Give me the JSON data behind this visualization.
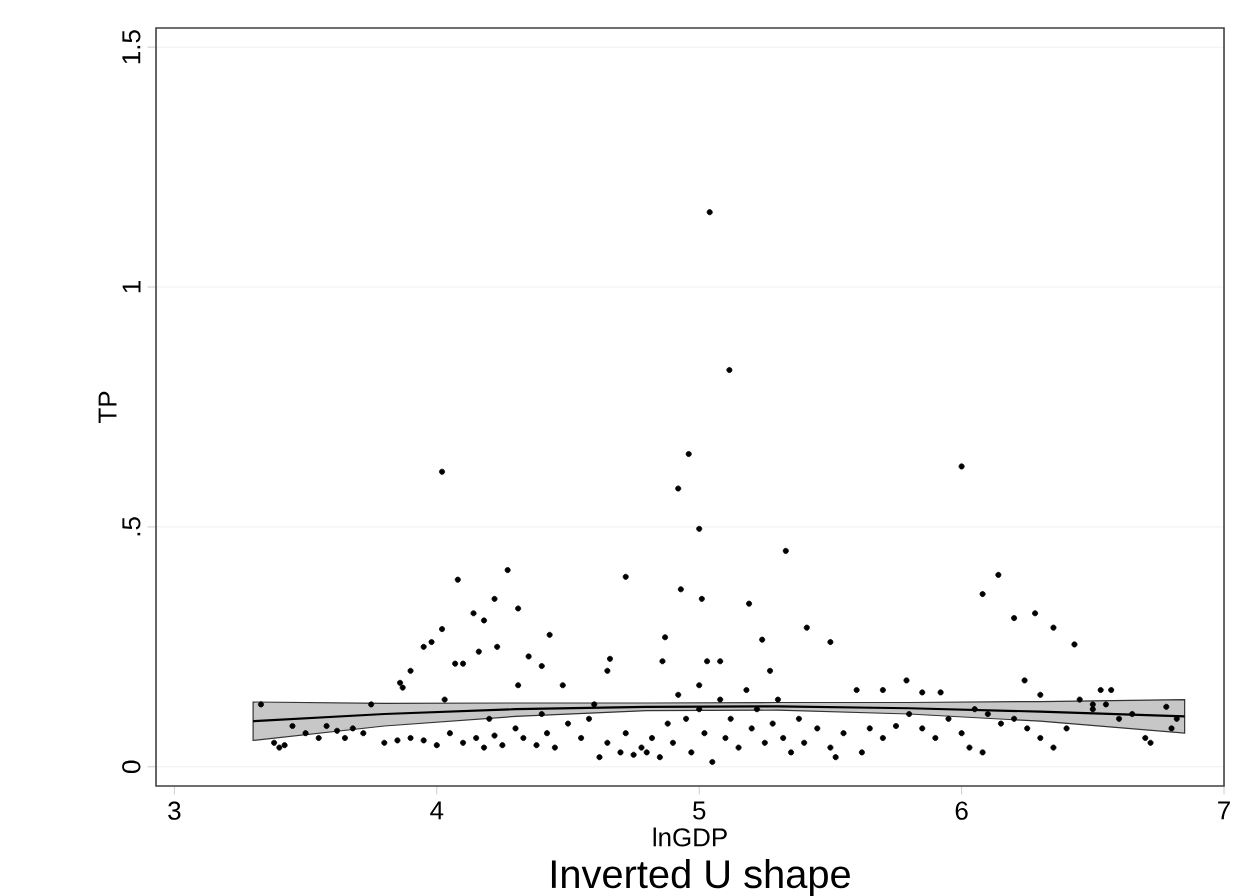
{
  "chart_data": {
    "type": "scatter",
    "xlabel": "lnGDP",
    "ylabel": "TP",
    "annotations": [
      "Inverted U shape"
    ],
    "xlim": [
      2.93,
      7.0
    ],
    "ylim": [
      -0.04,
      1.54
    ],
    "xticks": [
      3,
      4,
      5,
      6,
      7
    ],
    "yticks": [
      0,
      {
        "value": 0.5,
        "label": ".5"
      },
      1,
      1.5
    ],
    "grid": "y",
    "series": [
      {
        "color": "#000000",
        "marker": "circle",
        "x": [
          5.04,
          5.115,
          4.96,
          4.92,
          5.0,
          4.02,
          6.0,
          5.33,
          4.72,
          4.27,
          4.08,
          6.14,
          6.08,
          4.93,
          5.01,
          5.19,
          4.22,
          4.31,
          4.14,
          4.18,
          6.2,
          6.28,
          6.35,
          6.43,
          5.41,
          5.5,
          5.24,
          4.87,
          4.43,
          4.02,
          3.98,
          3.95,
          4.23,
          4.35,
          4.07,
          4.1,
          4.4,
          4.16,
          3.9,
          3.86,
          3.87,
          4.66,
          4.65,
          4.86,
          5.03,
          5.08,
          5.27,
          4.31,
          4.48,
          4.03,
          5.79,
          6.24,
          5.6,
          5.7,
          5.85,
          5.92,
          6.53,
          6.57,
          3.75,
          3.33,
          3.38,
          3.4,
          3.42,
          3.45,
          3.5,
          3.55,
          3.58,
          3.62,
          3.65,
          3.68,
          3.72,
          3.8,
          3.85,
          3.9,
          3.95,
          4.0,
          4.05,
          4.1,
          4.15,
          4.18,
          4.22,
          4.25,
          4.3,
          4.33,
          4.38,
          4.42,
          4.45,
          4.5,
          4.55,
          4.58,
          4.62,
          4.65,
          4.7,
          4.72,
          4.75,
          4.78,
          4.8,
          4.82,
          4.85,
          4.88,
          4.9,
          4.92,
          4.95,
          4.97,
          5.0,
          5.02,
          5.05,
          5.08,
          5.1,
          5.12,
          5.15,
          5.18,
          5.2,
          5.22,
          5.25,
          5.28,
          5.3,
          5.32,
          5.35,
          5.38,
          5.4,
          5.45,
          5.5,
          5.52,
          5.55,
          5.62,
          5.65,
          5.7,
          5.75,
          5.8,
          5.85,
          5.9,
          5.95,
          6.0,
          6.03,
          6.05,
          6.08,
          6.1,
          6.15,
          6.2,
          6.25,
          6.3,
          6.35,
          6.4,
          6.45,
          6.5,
          6.55,
          6.6,
          6.65,
          6.7,
          6.72,
          6.8,
          6.82,
          6.78,
          5.0,
          4.6,
          4.4,
          4.2,
          6.3,
          6.5
        ],
        "values": [
          1.156,
          0.827,
          0.652,
          0.58,
          0.496,
          0.615,
          0.626,
          0.45,
          0.396,
          0.41,
          0.39,
          0.4,
          0.36,
          0.37,
          0.35,
          0.34,
          0.35,
          0.33,
          0.32,
          0.305,
          0.31,
          0.32,
          0.29,
          0.255,
          0.29,
          0.26,
          0.265,
          0.27,
          0.275,
          0.287,
          0.26,
          0.25,
          0.25,
          0.23,
          0.215,
          0.215,
          0.21,
          0.24,
          0.2,
          0.175,
          0.165,
          0.225,
          0.2,
          0.22,
          0.22,
          0.22,
          0.2,
          0.17,
          0.17,
          0.14,
          0.18,
          0.18,
          0.16,
          0.16,
          0.155,
          0.155,
          0.16,
          0.16,
          0.13,
          0.13,
          0.05,
          0.04,
          0.045,
          0.085,
          0.07,
          0.06,
          0.085,
          0.075,
          0.06,
          0.08,
          0.07,
          0.05,
          0.055,
          0.06,
          0.055,
          0.045,
          0.07,
          0.05,
          0.06,
          0.04,
          0.065,
          0.045,
          0.08,
          0.06,
          0.045,
          0.07,
          0.04,
          0.09,
          0.06,
          0.1,
          0.02,
          0.05,
          0.03,
          0.07,
          0.025,
          0.04,
          0.03,
          0.06,
          0.02,
          0.09,
          0.05,
          0.15,
          0.1,
          0.03,
          0.17,
          0.07,
          0.01,
          0.14,
          0.06,
          0.1,
          0.04,
          0.16,
          0.08,
          0.12,
          0.05,
          0.09,
          0.14,
          0.06,
          0.03,
          0.1,
          0.05,
          0.08,
          0.04,
          0.02,
          0.07,
          0.03,
          0.08,
          0.06,
          0.085,
          0.11,
          0.08,
          0.06,
          0.1,
          0.07,
          0.04,
          0.12,
          0.03,
          0.11,
          0.09,
          0.1,
          0.08,
          0.06,
          0.04,
          0.08,
          0.14,
          0.12,
          0.13,
          0.1,
          0.11,
          0.06,
          0.05,
          0.08,
          0.1,
          0.125,
          0.12,
          0.13,
          0.11,
          0.1,
          0.15,
          0.13
        ]
      },
      {
        "type": "line",
        "color": "#000000",
        "marker": "none",
        "line_style": "solid",
        "x": [
          3.3,
          3.8,
          4.3,
          4.8,
          5.3,
          5.8,
          6.3,
          6.85
        ],
        "values": [
          0.095,
          0.11,
          0.12,
          0.125,
          0.126,
          0.122,
          0.115,
          0.105
        ],
        "lower": [
          0.055,
          0.085,
          0.105,
          0.117,
          0.118,
          0.11,
          0.095,
          0.07
        ],
        "upper": [
          0.135,
          0.132,
          0.133,
          0.133,
          0.134,
          0.134,
          0.136,
          0.14
        ]
      }
    ]
  }
}
